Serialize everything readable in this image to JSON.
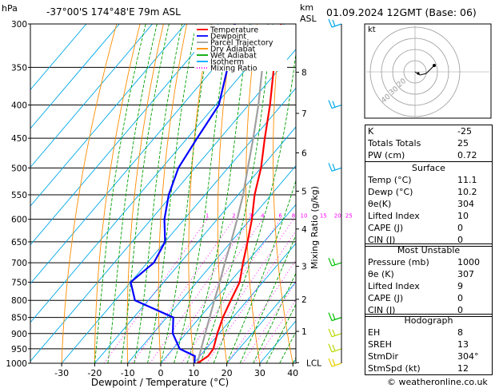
{
  "header": {
    "location": "-37°00'S  174°48'E  79m  ASL",
    "datetime": "01.09.2024  12GMT  (Base: 06)",
    "hpa_label": "hPa",
    "km_label": "km",
    "asl_label": "ASL"
  },
  "legend": {
    "items": [
      {
        "label": "Temperature",
        "color": "#ff0000",
        "style": "solid"
      },
      {
        "label": "Dewpoint",
        "color": "#0000ff",
        "style": "solid"
      },
      {
        "label": "Parcel Trajectory",
        "color": "#a0a0a0",
        "style": "solid"
      },
      {
        "label": "Dry Adiabat",
        "color": "#ff8c00",
        "style": "solid"
      },
      {
        "label": "Wet Adiabat",
        "color": "#00aa00",
        "style": "solid"
      },
      {
        "label": "Isotherm",
        "color": "#00aaff",
        "style": "solid"
      },
      {
        "label": "Mixing Ratio",
        "color": "#ff00ff",
        "style": "dotted"
      }
    ]
  },
  "chart_data": {
    "type": "skew-t log-p",
    "xlabel": "Dewpoint / Temperature (°C)",
    "right_axis_label": "Mixing Ratio (g/kg)",
    "pressure_levels": [
      300,
      350,
      400,
      450,
      500,
      550,
      600,
      650,
      700,
      750,
      800,
      850,
      900,
      950,
      1000
    ],
    "temp_ticks": [
      -30,
      -20,
      -10,
      0,
      10,
      20,
      30,
      40
    ],
    "xlim": [
      -35,
      40
    ],
    "ylim": [
      1000,
      300
    ],
    "height_km_labels": [
      {
        "km": "8",
        "p": 356
      },
      {
        "km": "7",
        "p": 412
      },
      {
        "km": "6",
        "p": 474
      },
      {
        "km": "5",
        "p": 543
      },
      {
        "km": "4",
        "p": 621
      },
      {
        "km": "3",
        "p": 709
      },
      {
        "km": "2",
        "p": 797
      },
      {
        "km": "1",
        "p": 893
      },
      {
        "km": "LCL",
        "p": 998
      }
    ],
    "mixing_ratio_labels": [
      "1",
      "2",
      "3",
      "4",
      "6",
      "8",
      "10",
      "15",
      "20",
      "25"
    ],
    "mixing_ratio_values": [
      1,
      2,
      3,
      4,
      6,
      8,
      10,
      15,
      20,
      25
    ],
    "temperature": [
      {
        "p": 1000,
        "t": 11.1
      },
      {
        "p": 975,
        "t": 12.5
      },
      {
        "p": 950,
        "t": 12.2
      },
      {
        "p": 900,
        "t": 9.5
      },
      {
        "p": 850,
        "t": 7.0
      },
      {
        "p": 800,
        "t": 5.0
      },
      {
        "p": 750,
        "t": 3.0
      },
      {
        "p": 700,
        "t": -1.0
      },
      {
        "p": 650,
        "t": -5.0
      },
      {
        "p": 600,
        "t": -9.5
      },
      {
        "p": 550,
        "t": -15.0
      },
      {
        "p": 500,
        "t": -20.0
      },
      {
        "p": 450,
        "t": -26.5
      },
      {
        "p": 400,
        "t": -33.5
      },
      {
        "p": 350,
        "t": -42.0
      },
      {
        "p": 300,
        "t": -51.0
      }
    ],
    "dewpoint": [
      {
        "p": 1000,
        "t": 10.2
      },
      {
        "p": 975,
        "t": 8.5
      },
      {
        "p": 950,
        "t": 2.0
      },
      {
        "p": 900,
        "t": -4.0
      },
      {
        "p": 850,
        "t": -8.0
      },
      {
        "p": 800,
        "t": -24.0
      },
      {
        "p": 750,
        "t": -30.0
      },
      {
        "p": 700,
        "t": -28.0
      },
      {
        "p": 650,
        "t": -30.0
      },
      {
        "p": 600,
        "t": -36.0
      },
      {
        "p": 550,
        "t": -41.0
      },
      {
        "p": 500,
        "t": -45.0
      },
      {
        "p": 450,
        "t": -47.0
      },
      {
        "p": 400,
        "t": -49.0
      },
      {
        "p": 350,
        "t": -56.0
      },
      {
        "p": 300,
        "t": -65.0
      }
    ],
    "parcel": [
      {
        "p": 1000,
        "t": 11.1
      },
      {
        "p": 950,
        "t": 8.5
      },
      {
        "p": 900,
        "t": 5.8
      },
      {
        "p": 850,
        "t": 3.0
      },
      {
        "p": 800,
        "t": 0.0
      },
      {
        "p": 750,
        "t": -3.0
      },
      {
        "p": 700,
        "t": -6.5
      },
      {
        "p": 650,
        "t": -10.0
      },
      {
        "p": 600,
        "t": -14.0
      },
      {
        "p": 550,
        "t": -18.5
      },
      {
        "p": 500,
        "t": -24.0
      },
      {
        "p": 450,
        "t": -30.0
      },
      {
        "p": 400,
        "t": -37.0
      },
      {
        "p": 350,
        "t": -45.5
      },
      {
        "p": 300,
        "t": -55.0
      }
    ],
    "wind_barbs_p": [
      300,
      400,
      500,
      700,
      850,
      900,
      950,
      1000
    ]
  },
  "hodograph": {
    "label": "kt",
    "ring_labels": [
      "20",
      "30",
      "40"
    ]
  },
  "indices": [
    {
      "label": "K",
      "value": "-25"
    },
    {
      "label": "Totals Totals",
      "value": "25"
    },
    {
      "label": "PW (cm)",
      "value": "0.72"
    }
  ],
  "surface": {
    "title": "Surface",
    "rows": [
      {
        "label": "Temp (°C)",
        "value": "11.1"
      },
      {
        "label": "Dewp (°C)",
        "value": "10.2"
      },
      {
        "label": "θe(K)",
        "value": "304"
      },
      {
        "label": "Lifted Index",
        "value": "10"
      },
      {
        "label": "CAPE (J)",
        "value": "0"
      },
      {
        "label": "CIN (J)",
        "value": "0"
      }
    ]
  },
  "most_unstable": {
    "title": "Most Unstable",
    "rows": [
      {
        "label": "Pressure (mb)",
        "value": "1000"
      },
      {
        "label": "θe (K)",
        "value": "307"
      },
      {
        "label": "Lifted Index",
        "value": "9"
      },
      {
        "label": "CAPE (J)",
        "value": "0"
      },
      {
        "label": "CIN (J)",
        "value": "0"
      }
    ]
  },
  "hodo_table": {
    "title": "Hodograph",
    "rows": [
      {
        "label": "EH",
        "value": "8"
      },
      {
        "label": "SREH",
        "value": "13"
      },
      {
        "label": "StmDir",
        "value": "304°"
      },
      {
        "label": "StmSpd (kt)",
        "value": "12"
      }
    ]
  },
  "copyright": "© weatheronline.co.uk"
}
